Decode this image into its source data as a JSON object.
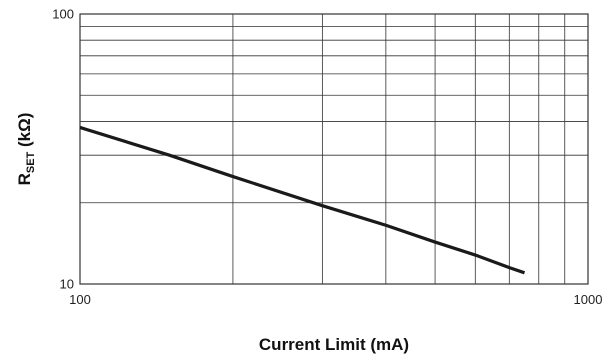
{
  "chart_data": {
    "type": "line",
    "title": "",
    "xlabel": "Current Limit (mA)",
    "ylabel": {
      "main": "R",
      "subscript": "SET",
      "suffix": " (kΩ)"
    },
    "x_scale": "log",
    "y_scale": "log",
    "xlim": [
      100,
      1000
    ],
    "ylim": [
      10,
      100
    ],
    "x_ticks": [
      {
        "value": 100,
        "label": "100"
      },
      {
        "value": 1000,
        "label": "1000"
      }
    ],
    "y_ticks": [
      {
        "value": 10,
        "label": "10"
      },
      {
        "value": 100,
        "label": "100"
      }
    ],
    "grid": true,
    "legend": "none",
    "line_color": "#1a1a1a",
    "grid_color": "#333333",
    "series": [
      {
        "x": [
          100,
          150,
          200,
          300,
          400,
          500,
          600,
          700,
          750
        ],
        "y": [
          38,
          30,
          25,
          19.5,
          16.5,
          14.3,
          12.8,
          11.5,
          11
        ]
      }
    ]
  }
}
